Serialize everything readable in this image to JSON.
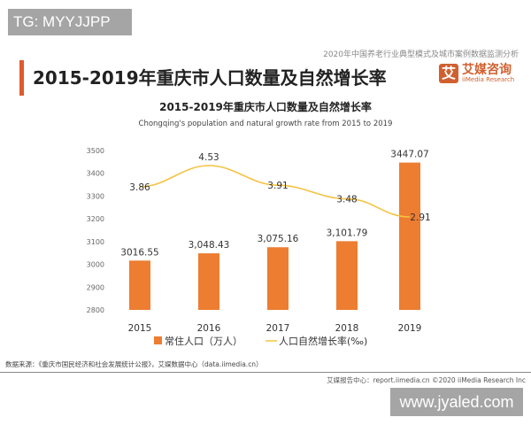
{
  "watermark_top": "TG: MYYJJPP",
  "watermark_bottom": "www.jyaled.com",
  "header": {
    "title": "2015-2019年重庆市人口数量及自然增长率",
    "report_name": "2020年中国养老行业典型模式及城市案例数据监测分析",
    "logo_mark": "艾",
    "logo_cn": "艾媒咨询",
    "logo_en": "iiMedia Research"
  },
  "colors": {
    "bar": "#ed7d31",
    "line": "#f5c242",
    "accent": "#e05a2b"
  },
  "chart_data": {
    "type": "bar+line",
    "title": "2015-2019年重庆市人口数量及自然增长率",
    "subtitle": "Chongqing's population and natural growth rate from 2015 to 2019",
    "categories": [
      "2015",
      "2016",
      "2017",
      "2018",
      "2019"
    ],
    "series": [
      {
        "name": "常住人口（万人）",
        "type": "bar",
        "values": [
          3016.55,
          3048.43,
          3075.16,
          3101.79,
          3447.07
        ],
        "labels": [
          "3016.55",
          "3,048.43",
          "3,075.16",
          "3,101.79",
          "3447.07"
        ]
      },
      {
        "name": "人口自然增长率(‰)",
        "type": "line",
        "values": [
          3.86,
          4.53,
          3.91,
          3.48,
          2.91
        ],
        "labels": [
          "3.86",
          "4.53",
          "3.91",
          "3.48",
          "2.91"
        ]
      }
    ],
    "yticks": [
      2800,
      2900,
      3000,
      3100,
      3200,
      3300,
      3400,
      3500
    ],
    "ylim": [
      2800,
      3500
    ],
    "legend": "bottom"
  },
  "source": "数据来源：《重庆市国民经济和社会发展统计公报》，艾媒数据中心（data.iimedia.cn）",
  "footer": "艾媒报告中心：report.iimedia.cn   ©2020  iiMedia Research  Inc"
}
